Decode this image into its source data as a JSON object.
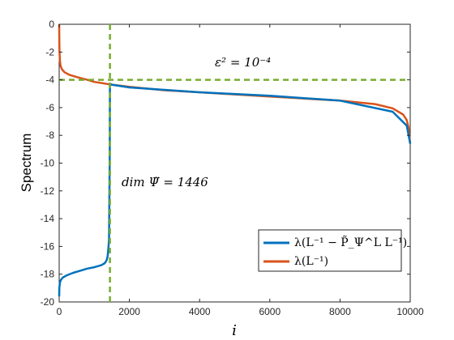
{
  "chart_data": {
    "type": "line",
    "xlabel": "i",
    "ylabel": "Spectrum",
    "xlim": [
      0,
      10000
    ],
    "ylim": [
      -20,
      0
    ],
    "xticks": [
      0,
      2000,
      4000,
      6000,
      8000,
      10000
    ],
    "yticks": [
      0,
      -2,
      -4,
      -6,
      -8,
      -10,
      -12,
      -14,
      -16,
      -18,
      -20
    ],
    "xtick_labels": [
      "0",
      "2000",
      "4000",
      "6000",
      "8000",
      "10000"
    ],
    "ytick_labels": [
      "0",
      "-2",
      "-4",
      "-6",
      "-8",
      "-10",
      "-12",
      "-14",
      "-16",
      "-18",
      "-20"
    ],
    "grid": false,
    "legend_position": "bottom-right",
    "series": [
      {
        "name": "λ(L⁻¹ − P̃_Ψ^L L⁻¹)",
        "color": "#0072BD",
        "x": [
          0,
          5,
          20,
          50,
          100,
          200,
          400,
          600,
          800,
          1000,
          1200,
          1300,
          1350,
          1380,
          1400,
          1420,
          1440,
          1446,
          1460,
          1500,
          2000,
          4000,
          6000,
          8000,
          9500,
          9900,
          10000
        ],
        "y": [
          -19.6,
          -19.0,
          -18.6,
          -18.4,
          -18.25,
          -18.1,
          -17.9,
          -17.75,
          -17.6,
          -17.5,
          -17.35,
          -17.2,
          -17.0,
          -16.7,
          -16.2,
          -15.5,
          -9.0,
          -4.3,
          -4.3,
          -4.35,
          -4.55,
          -4.9,
          -5.15,
          -5.5,
          -6.3,
          -7.3,
          -8.6
        ]
      },
      {
        "name": "λ(L⁻¹)",
        "color": "#D95319",
        "x": [
          0,
          5,
          10,
          20,
          40,
          80,
          150,
          300,
          500,
          800,
          1000,
          1500,
          2000,
          3000,
          4000,
          5000,
          6000,
          7000,
          8000,
          9000,
          9500,
          9800,
          9900,
          9950,
          10000
        ],
        "y": [
          0,
          -1.3,
          -2.0,
          -2.6,
          -3.0,
          -3.25,
          -3.45,
          -3.65,
          -3.8,
          -4.0,
          -4.15,
          -4.35,
          -4.5,
          -4.75,
          -4.9,
          -5.05,
          -5.2,
          -5.35,
          -5.5,
          -5.75,
          -6.05,
          -6.5,
          -6.9,
          -7.4,
          -8.6
        ]
      }
    ],
    "reference_lines": {
      "horizontal_y": -4,
      "vertical_x": 1446,
      "color": "#77AC30"
    },
    "annotations": {
      "epsilon": "ε² = 10⁻⁴",
      "dim": "dim Ψ̃ = 1446"
    }
  }
}
